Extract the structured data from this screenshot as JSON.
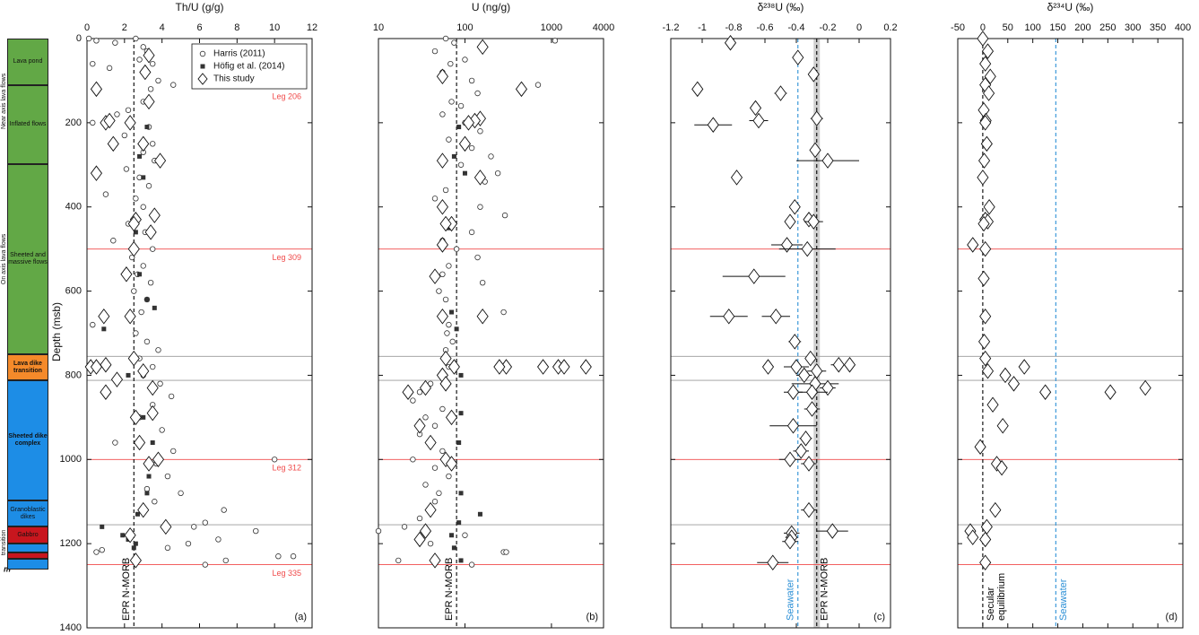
{
  "column": {
    "units": [
      {
        "label": "Lava pond",
        "top": 0,
        "base": 111,
        "color": "#62a846"
      },
      {
        "label": "Inflated flows",
        "top": 111,
        "base": 298,
        "color": "#62a846"
      },
      {
        "label": "Sheeted and massive flows",
        "top": 298,
        "base": 750,
        "color": "#62a846"
      },
      {
        "label": "Lava dike transition",
        "top": 750,
        "base": 812,
        "color": "#f58a2a",
        "bold": true
      },
      {
        "label": "Sheeted dike complex",
        "top": 812,
        "base": 1098,
        "color": "#1d8de6",
        "bold": true
      },
      {
        "label": "Granoblastic dikes",
        "top": 1098,
        "base": 1160,
        "color": "#1d8de6"
      },
      {
        "label": "Gabbro",
        "top": 1160,
        "base": 1200,
        "color": "#c8161e"
      },
      {
        "top": 1200,
        "base": 1222,
        "color": "#1d8de6"
      },
      {
        "top": 1222,
        "base": 1235,
        "color": "#c8161e"
      },
      {
        "top": 1235,
        "base": 1262,
        "color": "#1d8de6"
      }
    ],
    "groups": [
      {
        "label": "Near axis lava flows",
        "top": 0,
        "base": 298
      },
      {
        "label": "On axis lava flows",
        "top": 298,
        "base": 750
      },
      {
        "label": "transition",
        "top": 1160,
        "base": 1235
      }
    ],
    "bottom_label": "m"
  },
  "horizons": [
    {
      "depth": 500,
      "color": "#f04a4a",
      "label": "Leg 309"
    },
    {
      "depth": 1000,
      "color": "#f04a4a",
      "label": "Leg 312"
    },
    {
      "depth": 1250,
      "color": "#f04a4a",
      "label": "Leg 335"
    },
    {
      "depth": 755,
      "color": "#9a9a9a"
    },
    {
      "depth": 812,
      "color": "#9a9a9a"
    },
    {
      "depth": 1155,
      "color": "#9a9a9a"
    }
  ],
  "chart_data": [
    {
      "type": "scatter",
      "xlabel": "Th/U (g/g)",
      "ylabel": "Depth (msb)",
      "panel_label": "(a)",
      "xlim": [
        0,
        12
      ],
      "xticks": [
        0,
        2,
        4,
        6,
        8,
        10,
        12
      ],
      "ylim": [
        1400,
        0
      ],
      "yticks": [
        0,
        200,
        400,
        600,
        800,
        1000,
        1200,
        1400
      ],
      "ytick_labels": true,
      "horizon_labels": true,
      "top_note": "Leg 206",
      "legend": "upper right",
      "ref_lines": [
        {
          "value": 2.5,
          "label": "EPR N-MORB",
          "color": "#000000",
          "label_side": "left"
        }
      ],
      "series": [
        {
          "name": "Harris (2011)",
          "marker": "circle",
          "color": "#333333",
          "y": [
            0,
            5,
            10,
            0,
            20,
            30,
            50,
            60,
            70,
            60,
            80,
            100,
            110,
            120,
            150,
            170,
            180,
            200,
            210,
            230,
            250,
            270,
            290,
            310,
            330,
            350,
            370,
            380,
            400,
            420,
            440,
            460,
            480,
            500,
            520,
            540,
            560,
            580,
            600,
            620,
            650,
            680,
            700,
            720,
            740,
            760,
            780,
            800,
            820,
            850,
            870,
            900,
            930,
            960,
            980,
            1000,
            1010,
            1040,
            1070,
            1080,
            1100,
            1120,
            1150,
            1160,
            1170,
            1190,
            1200,
            1210,
            1230,
            1230,
            1240,
            1250,
            1220,
            1215
          ],
          "x": [
            0.1,
            0.5,
            1.5,
            2.6,
            3.0,
            3.2,
            2.8,
            0.3,
            1.2,
            3.5,
            3.0,
            3.8,
            4.6,
            3.4,
            3.0,
            2.2,
            1.6,
            0.3,
            3.3,
            2.0,
            3.5,
            3.0,
            3.6,
            2.1,
            2.8,
            3.3,
            1.0,
            2.6,
            3.0,
            3.5,
            2.2,
            3.1,
            1.4,
            3.5,
            2.4,
            3.0,
            2.7,
            3.4,
            2.5,
            3.2,
            2.9,
            0.3,
            2.6,
            3.2,
            3.8,
            2.8,
            3.5,
            3.0,
            3.9,
            4.5,
            3.5,
            2.8,
            4.0,
            1.5,
            4.6,
            10.0,
            3.7,
            4.3,
            3.2,
            5.0,
            3.6,
            7.3,
            6.3,
            5.7,
            9.0,
            7.0,
            5.4,
            4.3,
            11.0,
            10.2,
            7.4,
            6.3,
            0.5,
            0.8
          ]
        },
        {
          "name": "Höfig et al. (2014)",
          "marker": "square",
          "color": "#333333",
          "y": [
            210,
            280,
            330,
            460,
            560,
            620,
            640,
            690,
            760,
            800,
            900,
            960,
            1040,
            1080,
            1130,
            1160,
            1180,
            1190,
            1200,
            1210
          ],
          "x": [
            3.2,
            2.8,
            3.0,
            2.6,
            2.8,
            3.2,
            3.6,
            0.9,
            2.5,
            2.2,
            3.0,
            3.5,
            3.3,
            3.2,
            2.7,
            0.8,
            1.9,
            2.2,
            2.6,
            2.5
          ]
        },
        {
          "name": "This study",
          "marker": "diamond",
          "color": "#111111",
          "y": [
            40,
            80,
            120,
            150,
            200,
            195,
            200,
            250,
            250,
            290,
            320,
            420,
            430,
            440,
            460,
            500,
            560,
            660,
            660,
            760,
            775,
            780,
            780,
            790,
            810,
            830,
            840,
            890,
            900,
            960,
            1000,
            1010,
            1120,
            1160,
            1180,
            1240
          ],
          "x": [
            3.3,
            3.1,
            0.5,
            3.3,
            1.0,
            1.2,
            2.3,
            1.4,
            3.0,
            3.9,
            0.5,
            3.6,
            2.6,
            2.5,
            3.4,
            2.5,
            2.1,
            2.3,
            0.9,
            2.5,
            1.0,
            0.2,
            0.5,
            3.0,
            1.6,
            3.5,
            1.0,
            3.5,
            2.6,
            2.8,
            3.8,
            3.3,
            3.0,
            4.2,
            2.3,
            2.6
          ]
        }
      ]
    },
    {
      "type": "scatter",
      "xlabel": "U (ng/g)",
      "panel_label": "(b)",
      "xscale": "log",
      "xlim": [
        10,
        4000
      ],
      "xticks": [
        10,
        100,
        1000,
        4000
      ],
      "ylim": [
        1400,
        0
      ],
      "yticks": [
        0,
        200,
        400,
        600,
        800,
        1000,
        1200,
        1400
      ],
      "ref_lines": [
        {
          "value": 80,
          "label": "EPR N-MORB",
          "color": "#000000",
          "label_side": "left"
        }
      ],
      "series": [
        {
          "marker": "circle",
          "color": "#333333",
          "y": [
            0,
            5,
            10,
            30,
            50,
            60,
            80,
            100,
            110,
            130,
            150,
            160,
            180,
            200,
            220,
            240,
            260,
            280,
            300,
            320,
            340,
            360,
            380,
            400,
            420,
            440,
            460,
            480,
            500,
            520,
            540,
            560,
            580,
            600,
            620,
            650,
            680,
            700,
            720,
            740,
            780,
            820,
            840,
            860,
            880,
            900,
            920,
            940,
            960,
            980,
            1000,
            1020,
            1040,
            1060,
            1080,
            1100,
            1140,
            1160,
            1170,
            1180,
            1200,
            1220,
            1220,
            1240,
            1250
          ],
          "x": [
            60,
            1100,
            75,
            45,
            100,
            68,
            55,
            120,
            700,
            140,
            70,
            90,
            55,
            100,
            150,
            65,
            120,
            200,
            90,
            240,
            170,
            60,
            45,
            150,
            290,
            70,
            120,
            55,
            80,
            140,
            65,
            55,
            160,
            50,
            60,
            280,
            65,
            62,
            72,
            60,
            65,
            40,
            30,
            25,
            55,
            35,
            45,
            30,
            40,
            55,
            25,
            45,
            65,
            35,
            50,
            45,
            30,
            20,
            10,
            100,
            40,
            280,
            300,
            17,
            120
          ]
        },
        {
          "marker": "square",
          "color": "#333333",
          "y": [
            210,
            280,
            320,
            450,
            650,
            690,
            800,
            890,
            960,
            1080,
            1130,
            1150,
            1180,
            1210,
            1240
          ],
          "x": [
            85,
            75,
            100,
            65,
            70,
            80,
            90,
            90,
            85,
            90,
            150,
            85,
            70,
            75,
            90
          ]
        },
        {
          "marker": "diamond",
          "color": "#111111",
          "y": [
            20,
            90,
            120,
            190,
            195,
            200,
            250,
            290,
            330,
            400,
            440,
            440,
            490,
            565,
            660,
            660,
            760,
            780,
            780,
            780,
            780,
            780,
            780,
            780,
            800,
            820,
            840,
            830,
            900,
            920,
            960,
            1000,
            1010,
            1120,
            1170,
            1190,
            1240
          ],
          "x": [
            160,
            55,
            450,
            150,
            130,
            110,
            100,
            55,
            150,
            55,
            70,
            60,
            55,
            45,
            160,
            55,
            60,
            300,
            250,
            800,
            1200,
            1400,
            2500,
            75,
            55,
            60,
            22,
            35,
            70,
            30,
            40,
            60,
            70,
            40,
            35,
            30,
            45
          ]
        }
      ]
    },
    {
      "type": "scatter",
      "xlabel": "δ²³⁸U (‰)",
      "panel_label": "(c)",
      "xlim": [
        -1.2,
        0.2
      ],
      "xticks": [
        -1.2,
        -1,
        -0.8,
        -0.6,
        -0.4,
        -0.2,
        0,
        0.2
      ],
      "ylim": [
        1400,
        0
      ],
      "yticks": [
        0,
        200,
        400,
        600,
        800,
        1000,
        1200,
        1400
      ],
      "band": [
        -0.29,
        -0.25
      ],
      "band_color": "#cfcfcf",
      "ref_lines": [
        {
          "value": -0.39,
          "label": "Seawater",
          "color": "#2b8fd6",
          "label_side": "left"
        },
        {
          "value": -0.27,
          "label": "EPR N-MORB",
          "color": "#000000",
          "label_side": "right"
        }
      ],
      "series": [
        {
          "marker": "diamond",
          "color": "#111111",
          "y": [
            10,
            45,
            85,
            120,
            130,
            165,
            190,
            195,
            205,
            265,
            290,
            330,
            400,
            430,
            435,
            435,
            490,
            500,
            565,
            660,
            660,
            720,
            760,
            775,
            775,
            780,
            780,
            790,
            800,
            820,
            830,
            840,
            840,
            880,
            920,
            950,
            980,
            1000,
            1010,
            1120,
            1170,
            1175,
            1185,
            1195,
            1245
          ],
          "x": [
            -0.82,
            -0.39,
            -0.29,
            -1.03,
            -0.5,
            -0.66,
            -0.27,
            -0.64,
            -0.93,
            -0.28,
            -0.2,
            -0.78,
            -0.41,
            -0.32,
            -0.44,
            -0.29,
            -0.46,
            -0.33,
            -0.67,
            -0.83,
            -0.53,
            -0.41,
            -0.31,
            -0.13,
            -0.06,
            -0.58,
            -0.4,
            -0.27,
            -0.35,
            -0.28,
            -0.2,
            -0.3,
            -0.42,
            -0.3,
            -0.42,
            -0.34,
            -0.37,
            -0.44,
            -0.32,
            -0.32,
            -0.17,
            -0.43,
            -0.43,
            -0.44,
            -0.55
          ],
          "xerr": [
            null,
            0.03,
            0.02,
            null,
            0.04,
            null,
            0.04,
            0.06,
            0.12,
            null,
            0.2,
            null,
            null,
            0.03,
            0.02,
            0.06,
            0.1,
            0.18,
            0.2,
            0.12,
            0.09,
            0.04,
            0.03,
            0.05,
            null,
            null,
            0.08,
            0.06,
            0.05,
            0.15,
            0.05,
            0.1,
            0.06,
            0.05,
            0.15,
            0.04,
            0.05,
            0.07,
            0.05,
            0.05,
            0.1,
            0.05,
            0.04,
            0.05,
            0.1
          ]
        }
      ]
    },
    {
      "type": "scatter",
      "xlabel": "δ²³⁴U (‰)",
      "panel_label": "(d)",
      "xlim": [
        -50,
        400
      ],
      "xticks": [
        -50,
        0,
        50,
        100,
        150,
        200,
        250,
        300,
        350,
        400
      ],
      "ylim": [
        1400,
        0
      ],
      "yticks": [
        0,
        200,
        400,
        600,
        800,
        1000,
        1200,
        1400
      ],
      "ref_lines": [
        {
          "value": 0,
          "label": [
            "Secular",
            "equilibrium"
          ],
          "color": "#000000",
          "label_side": "right"
        },
        {
          "value": 146,
          "label": "Seawater",
          "color": "#2b8fd6",
          "label_side": "right"
        }
      ],
      "series": [
        {
          "marker": "diamond",
          "color": "#111111",
          "y": [
            0,
            30,
            60,
            90,
            110,
            130,
            170,
            195,
            200,
            250,
            290,
            330,
            400,
            430,
            435,
            440,
            490,
            500,
            570,
            660,
            720,
            760,
            780,
            790,
            800,
            820,
            840,
            840,
            830,
            870,
            920,
            970,
            1010,
            1020,
            1120,
            1160,
            1170,
            1185,
            1190,
            1245
          ],
          "x": [
            0,
            10,
            5,
            15,
            5,
            12,
            2,
            6,
            5,
            8,
            3,
            0,
            13,
            5,
            10,
            2,
            -20,
            5,
            2,
            5,
            3,
            5,
            83,
            10,
            45,
            62,
            125,
            255,
            325,
            20,
            40,
            -5,
            28,
            38,
            25,
            8,
            -25,
            -20,
            5,
            5
          ]
        }
      ]
    }
  ]
}
